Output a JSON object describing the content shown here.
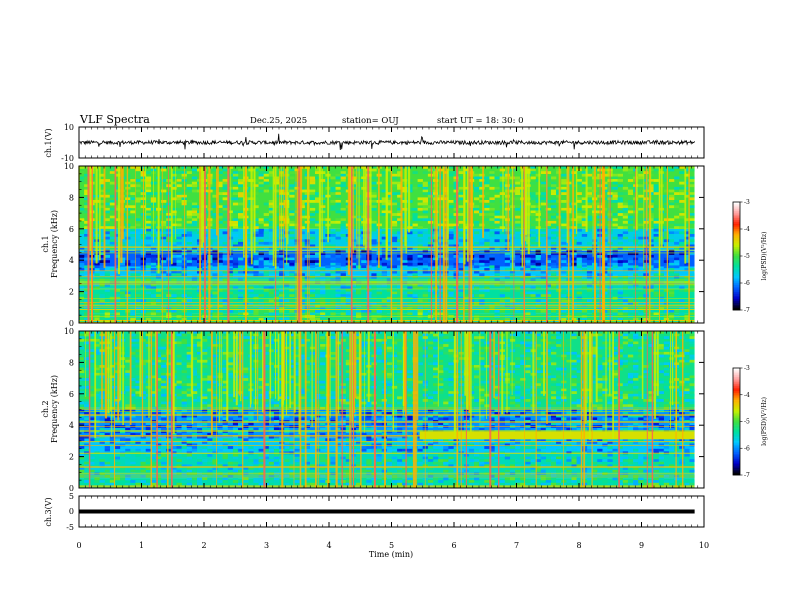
{
  "header": {
    "title": "VLF Spectra",
    "date": "Dec.25, 2025",
    "station": "station= OUJ",
    "start": "start  UT =   18: 30: 0"
  },
  "chart_data": [
    {
      "type": "line",
      "panel": "waveform-ch1",
      "ylabel": "ch.1(V)",
      "ylim": [
        -10,
        10
      ],
      "yticks": [
        "10",
        "-10"
      ],
      "xlim": [
        0,
        10
      ],
      "baseline": 0,
      "noise_amplitude": 1.2,
      "spike_amplitude": 5
    },
    {
      "type": "heatmap",
      "panel": "spectrogram-ch1",
      "ylabel": "ch.1\nFrequency (kHz)",
      "ylim": [
        0,
        10
      ],
      "yticks": [
        "0",
        "2",
        "4",
        "6",
        "8",
        "10"
      ],
      "xlim": [
        0,
        9.85
      ],
      "colorbar": {
        "label": "log(PSD)(V²/Hz)",
        "range": [
          -7,
          -3
        ],
        "ticks": [
          "-3",
          "-4",
          "-5",
          "-6",
          "-7"
        ],
        "colors": [
          "#000000",
          "#0000c8",
          "#0060ff",
          "#00c8ff",
          "#00e0a0",
          "#40e040",
          "#c8f000",
          "#ffb000",
          "#ff2000",
          "#ffa0a0",
          "#ffffff"
        ]
      },
      "bands": [
        {
          "f_range": [
            0,
            0.6
          ],
          "level": -5.2
        },
        {
          "f_range": [
            0.6,
            2.2
          ],
          "level": -5.4
        },
        {
          "f_range": [
            2.2,
            3.0
          ],
          "level": -5.5
        },
        {
          "f_range": [
            3.0,
            3.6
          ],
          "level": -5.8
        },
        {
          "f_range": [
            3.6,
            4.6
          ],
          "level": -6.2
        },
        {
          "f_range": [
            4.6,
            6.0
          ],
          "level": -5.7
        },
        {
          "f_range": [
            6.0,
            10.0
          ],
          "level": -5.0
        }
      ]
    },
    {
      "type": "heatmap",
      "panel": "spectrogram-ch2",
      "ylabel": "ch.2\nFrequency (kHz)",
      "ylim": [
        0,
        10
      ],
      "yticks": [
        "0",
        "2",
        "4",
        "6",
        "8",
        "10"
      ],
      "xlim": [
        0,
        9.85
      ],
      "colorbar": {
        "label": "log(PSD)(V²/Hz)",
        "range": [
          -7,
          -3
        ],
        "ticks": [
          "-3",
          "-4",
          "-5",
          "-6",
          "-7"
        ]
      },
      "bands": [
        {
          "f_range": [
            0,
            0.6
          ],
          "level": -5.4
        },
        {
          "f_range": [
            0.6,
            2.2
          ],
          "level": -5.5
        },
        {
          "f_range": [
            2.2,
            3.2
          ],
          "level": -5.8
        },
        {
          "f_range": [
            3.2,
            5.0
          ],
          "level": -6.0
        },
        {
          "f_range": [
            5.0,
            10.0
          ],
          "level": -5.3
        }
      ],
      "step_feature": {
        "t_start": 5.45,
        "f_range": [
          3.1,
          3.6
        ],
        "level": -4.5
      }
    },
    {
      "type": "line",
      "panel": "waveform-ch3",
      "ylabel": "ch.3(V)",
      "ylim": [
        -5,
        5
      ],
      "yticks": [
        "5",
        "0",
        "-5"
      ],
      "xlim": [
        0,
        10
      ],
      "x": [
        0,
        9.85
      ],
      "y": [
        0,
        0
      ]
    }
  ],
  "xaxis": {
    "label": "Time  (min)",
    "range": [
      0,
      10
    ],
    "ticks": [
      "0",
      "1",
      "2",
      "3",
      "4",
      "5",
      "6",
      "7",
      "8",
      "9",
      "10"
    ]
  }
}
